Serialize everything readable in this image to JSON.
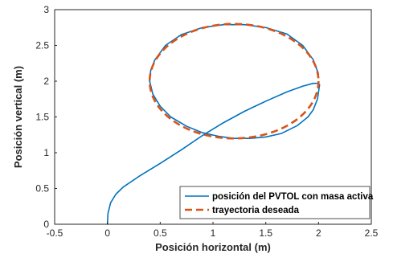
{
  "chart_data": {
    "type": "line",
    "xlabel": "Posición horizontal (m)",
    "ylabel": "Posición vertical (m)",
    "xlim": [
      -0.5,
      2.5
    ],
    "ylim": [
      0,
      3
    ],
    "xticks": [
      "-0.5",
      "0",
      "0.5",
      "1",
      "1.5",
      "2",
      "2.5"
    ],
    "yticks": [
      "0",
      "0.5",
      "1",
      "1.5",
      "2",
      "2.5",
      "3"
    ],
    "grid": false,
    "legend_position": "bottom-right",
    "series": [
      {
        "name": "posición del PVTOL con masa activa",
        "color": "#0072BD",
        "style": "solid",
        "x": [
          0,
          0.005,
          0.03,
          0.08,
          0.15,
          0.3,
          0.5,
          0.7,
          0.9,
          1.1,
          1.3,
          1.5,
          1.7,
          1.85,
          1.95,
          2.0,
          2.01,
          2.0,
          1.99,
          1.95,
          1.9,
          1.8,
          1.65,
          1.5,
          1.35,
          1.2,
          1.05,
          0.9,
          0.75,
          0.6,
          0.5,
          0.43,
          0.4,
          0.41,
          0.45,
          0.55,
          0.7,
          0.9,
          1.1,
          1.3,
          1.5,
          1.7,
          1.85,
          1.95,
          2.0
        ],
        "y": [
          0,
          0.15,
          0.3,
          0.42,
          0.52,
          0.67,
          0.85,
          1.04,
          1.24,
          1.42,
          1.58,
          1.72,
          1.85,
          1.93,
          1.97,
          1.97,
          1.95,
          1.85,
          1.75,
          1.6,
          1.5,
          1.38,
          1.27,
          1.22,
          1.2,
          1.2,
          1.23,
          1.28,
          1.37,
          1.5,
          1.65,
          1.82,
          2.0,
          2.15,
          2.3,
          2.5,
          2.65,
          2.75,
          2.79,
          2.79,
          2.75,
          2.66,
          2.5,
          2.3,
          2.1
        ]
      },
      {
        "name": "trayectoria deseada",
        "color": "#D95319",
        "style": "dashed",
        "shape": "ellipse",
        "center": [
          1.2,
          2.0
        ],
        "radius_x": 0.8,
        "radius_y": 0.8
      }
    ]
  }
}
